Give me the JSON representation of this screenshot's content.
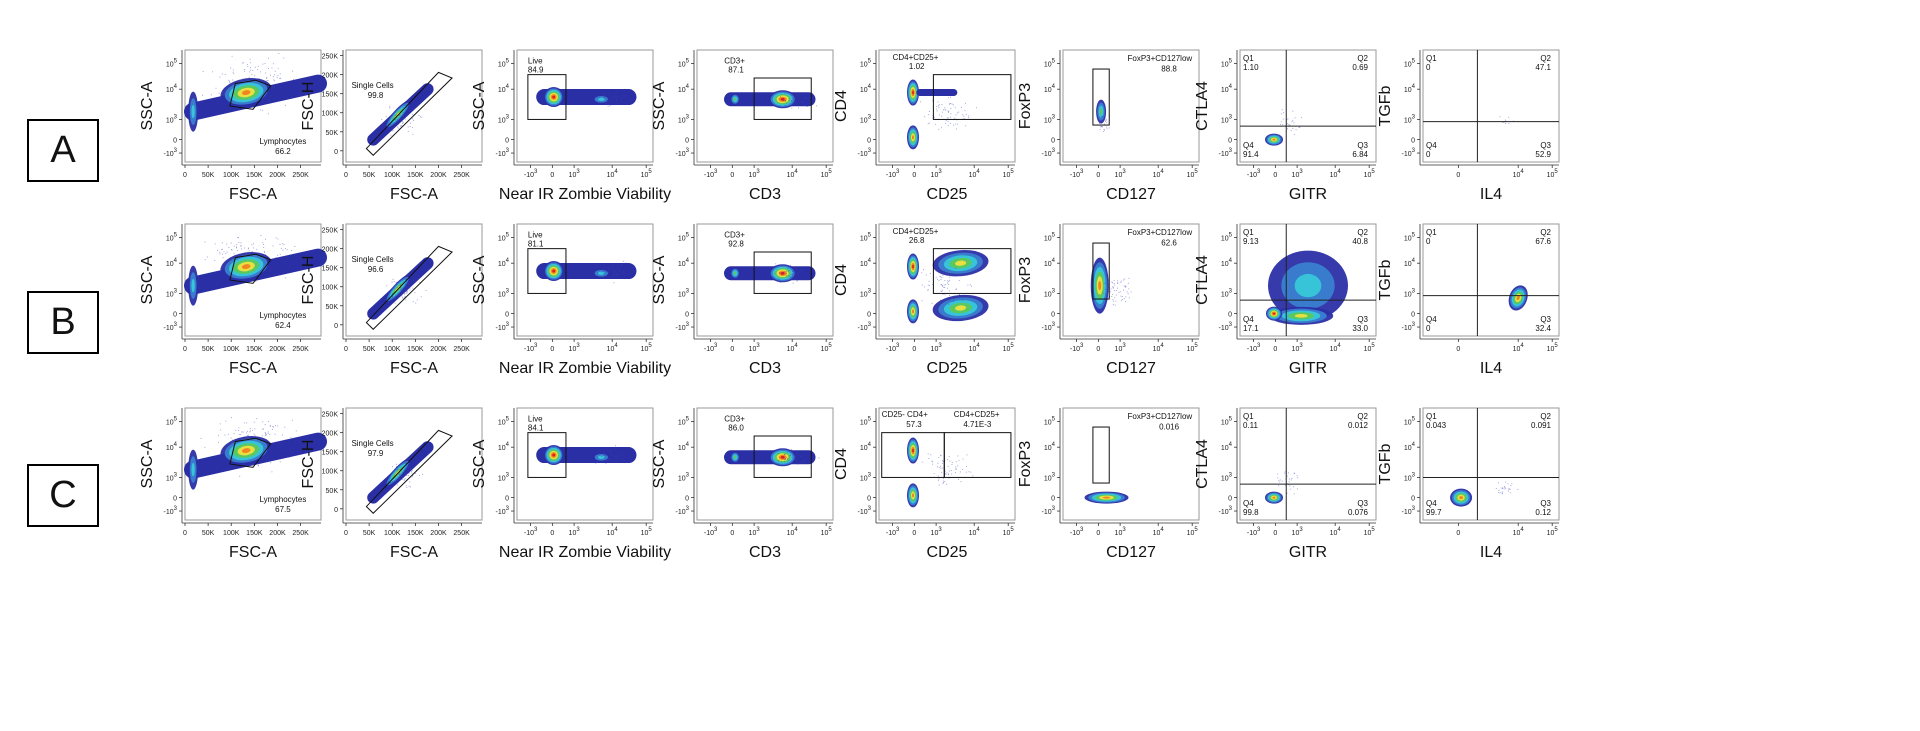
{
  "figure": {
    "rows": [
      {
        "label": "A"
      },
      {
        "label": "B"
      },
      {
        "label": "C"
      }
    ]
  },
  "chart_data": {
    "type": "scatter",
    "description": "Flow cytometry gating panels (density dot plots) for three samples A, B, C",
    "columns": [
      {
        "id": "lymph",
        "xlabel": "FSC-A",
        "ylabel": "SSC-A",
        "x_scale": "linear",
        "y_scale": "biex",
        "x_ticks": [
          "0",
          "50K",
          "100K",
          "150K",
          "200K",
          "250K"
        ],
        "y_ticks": [
          "10^5",
          "10^4",
          "10^3",
          "0",
          "-10^3"
        ],
        "gate_name": "Lymphocytes",
        "gate_type": "polygon"
      },
      {
        "id": "single",
        "xlabel": "FSC-A",
        "ylabel": "FSC-H",
        "x_scale": "linear",
        "y_scale": "linear",
        "x_ticks": [
          "0",
          "50K",
          "100K",
          "150K",
          "200K",
          "250K"
        ],
        "y_ticks": [
          "250K",
          "200K",
          "150K",
          "100K",
          "50K",
          "0"
        ],
        "gate_name": "Single Cells",
        "gate_type": "polygon"
      },
      {
        "id": "live",
        "xlabel": "Near IR Zombie Viability",
        "ylabel": "SSC-A",
        "x_scale": "biex",
        "y_scale": "biex",
        "x_ticks": [
          "-10^3",
          "0",
          "10^3",
          "10^4",
          "10^5"
        ],
        "y_ticks": [
          "10^5",
          "10^4",
          "10^3",
          "0",
          "-10^3"
        ],
        "gate_name": "Live",
        "gate_type": "rectangle"
      },
      {
        "id": "cd3",
        "xlabel": "CD3",
        "ylabel": "SSC-A",
        "x_scale": "biex",
        "y_scale": "biex",
        "x_ticks": [
          "-10^3",
          "0",
          "10^3",
          "10^4",
          "10^5"
        ],
        "y_ticks": [
          "10^5",
          "10^4",
          "10^3",
          "0",
          "-10^3"
        ],
        "gate_name": "CD3+",
        "gate_type": "rectangle"
      },
      {
        "id": "cd4cd25",
        "xlabel": "CD25",
        "ylabel": "CD4",
        "x_scale": "biex",
        "y_scale": "biex",
        "x_ticks": [
          "-10^3",
          "0",
          "10^3",
          "10^4",
          "10^5"
        ],
        "y_ticks": [
          "10^5",
          "10^4",
          "10^3",
          "0",
          "-10^3"
        ],
        "gate_name": "CD4+CD25+",
        "gate_type": "rectangle"
      },
      {
        "id": "foxp3",
        "xlabel": "CD127",
        "ylabel": "FoxP3",
        "x_scale": "biex",
        "y_scale": "biex",
        "x_ticks": [
          "-10^3",
          "0",
          "10^3",
          "10^4",
          "10^5"
        ],
        "y_ticks": [
          "10^5",
          "10^4",
          "10^3",
          "0",
          "-10^3"
        ],
        "gate_name": "FoxP3+CD127low",
        "gate_type": "rectangle"
      },
      {
        "id": "ctla4",
        "xlabel": "GITR",
        "ylabel": "CTLA4",
        "x_scale": "biex",
        "y_scale": "biex",
        "x_ticks": [
          "-10^3",
          "0",
          "10^3",
          "10^4",
          "10^5"
        ],
        "y_ticks": [
          "10^5",
          "10^4",
          "10^3",
          "0",
          "-10^3"
        ],
        "gate_name": "Quadrant",
        "gate_type": "quadrant"
      },
      {
        "id": "tgfb",
        "xlabel": "IL4",
        "ylabel": "TGFb",
        "x_scale": "biex",
        "y_scale": "biex",
        "x_ticks": [
          "0",
          "10^4",
          "10^5"
        ],
        "y_ticks": [
          "10^5",
          "10^4",
          "10^3",
          "0",
          "-10^3"
        ],
        "gate_name": "Quadrant",
        "gate_type": "quadrant"
      }
    ],
    "rows": [
      {
        "label": "A",
        "lymphocytes": "66.2",
        "single_cells": "99.8",
        "live": "84.9",
        "cd3_pos": "87.1",
        "cd4cd25": [
          {
            "name": "CD4+CD25+",
            "value": "1.02"
          }
        ],
        "foxp3_cd127low": "88.8",
        "ctla4_gitr": {
          "Q1": "1.10",
          "Q2": "0.69",
          "Q3": "6.84",
          "Q4": "91.4"
        },
        "tgfb_il4": {
          "Q1": "0",
          "Q2": "47.1",
          "Q3": "52.9",
          "Q4": "0"
        }
      },
      {
        "label": "B",
        "lymphocytes": "62.4",
        "single_cells": "96.6",
        "live": "81.1",
        "cd3_pos": "92.8",
        "cd4cd25": [
          {
            "name": "CD4+CD25+",
            "value": "26.8"
          }
        ],
        "foxp3_cd127low": "62.6",
        "ctla4_gitr": {
          "Q1": "9.13",
          "Q2": "40.8",
          "Q3": "33.0",
          "Q4": "17.1"
        },
        "tgfb_il4": {
          "Q1": "0",
          "Q2": "67.6",
          "Q3": "32.4",
          "Q4": "0"
        }
      },
      {
        "label": "C",
        "lymphocytes": "67.5",
        "single_cells": "97.9",
        "live": "84.1",
        "cd3_pos": "86.0",
        "cd4cd25": [
          {
            "name": "CD25- CD4+",
            "value": "57.3"
          },
          {
            "name": "CD4+CD25+",
            "value": "4.71E-3"
          }
        ],
        "foxp3_cd127low": "0.016",
        "ctla4_gitr": {
          "Q1": "0.11",
          "Q2": "0.012",
          "Q3": "0.076",
          "Q4": "99.8"
        },
        "tgfb_il4": {
          "Q1": "0.043",
          "Q2": "0.091",
          "Q3": "0.12",
          "Q4": "99.7"
        }
      }
    ],
    "density_colors": [
      "#2b2fa6",
      "#3a7fd0",
      "#37c8d8",
      "#5cc85a",
      "#f0e040",
      "#f08020",
      "#e01818"
    ]
  }
}
